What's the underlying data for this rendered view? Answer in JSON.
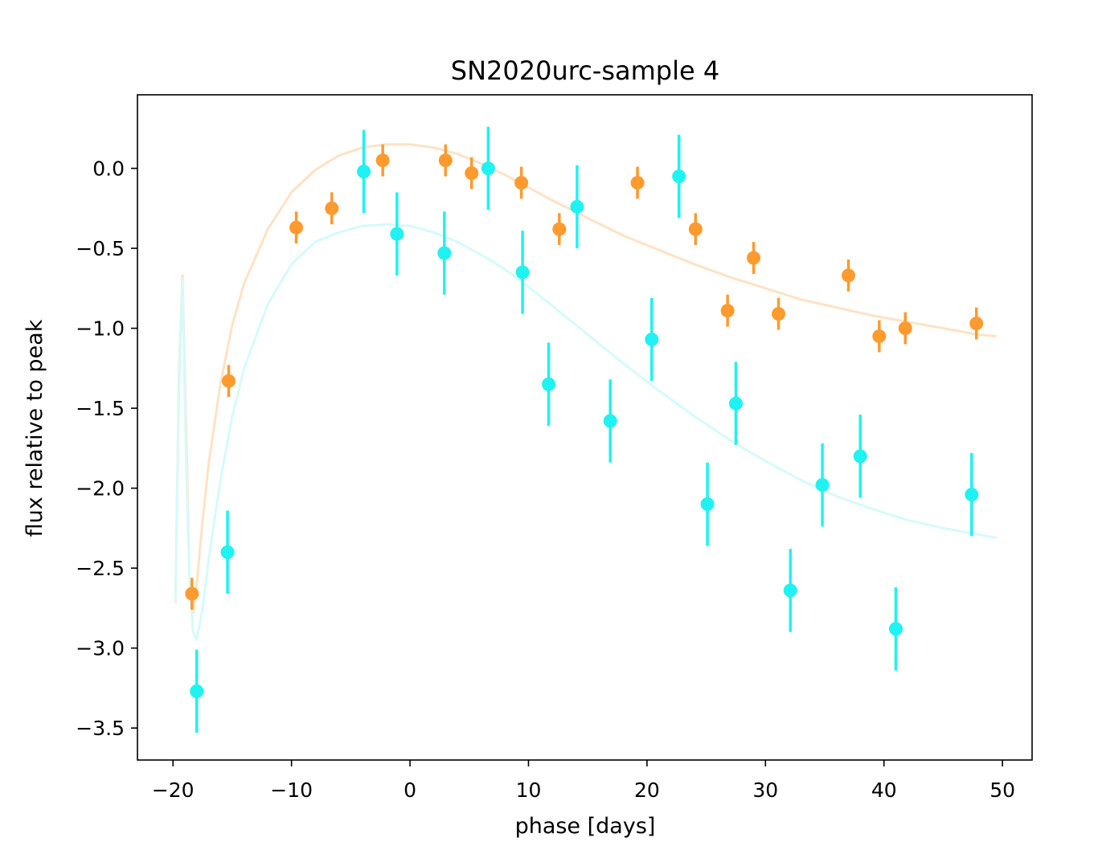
{
  "chart_data": {
    "type": "scatter",
    "title": "SN2020urc-sample 4",
    "xlabel": "phase [days]",
    "ylabel": "flux relative to peak",
    "xlim": [
      -23,
      52.5
    ],
    "ylim": [
      -3.7,
      0.46
    ],
    "xticks": [
      -20,
      -10,
      0,
      10,
      20,
      30,
      40,
      50
    ],
    "xtick_labels": [
      "−20",
      "−10",
      "0",
      "10",
      "20",
      "30",
      "40",
      "50"
    ],
    "yticks": [
      0.0,
      -0.5,
      -1.0,
      -1.5,
      -2.0,
      -2.5,
      -3.0,
      -3.5
    ],
    "ytick_labels": [
      "0.0",
      "−0.5",
      "−1.0",
      "−1.5",
      "−2.0",
      "−2.5",
      "−3.0",
      "−3.5"
    ],
    "grid": false,
    "series": [
      {
        "name": "orange",
        "color": "#ff9a2e",
        "x": [
          -18.4,
          -15.3,
          -9.6,
          -6.6,
          -2.3,
          3.0,
          5.2,
          9.4,
          12.6,
          19.2,
          24.1,
          26.8,
          29.0,
          31.1,
          37.0,
          39.6,
          41.8,
          47.8
        ],
        "y": [
          -2.66,
          -1.33,
          -0.37,
          -0.25,
          0.05,
          0.05,
          -0.03,
          -0.09,
          -0.38,
          -0.09,
          -0.38,
          -0.89,
          -0.56,
          -0.91,
          -0.67,
          -1.05,
          -1.0,
          -0.97
        ],
        "err": [
          0.1,
          0.1,
          0.1,
          0.1,
          0.1,
          0.1,
          0.1,
          0.1,
          0.1,
          0.1,
          0.1,
          0.1,
          0.1,
          0.1,
          0.1,
          0.1,
          0.1,
          0.1
        ]
      },
      {
        "name": "cyan",
        "color": "#1ff2f2",
        "x": [
          -18.0,
          -15.4,
          -3.9,
          -1.1,
          2.9,
          6.6,
          9.5,
          11.7,
          14.1,
          16.9,
          20.4,
          22.7,
          25.1,
          27.5,
          32.1,
          34.8,
          38.0,
          41.0,
          47.4
        ],
        "y": [
          -3.27,
          -2.4,
          -0.02,
          -0.41,
          -0.53,
          0.0,
          -0.65,
          -1.35,
          -0.24,
          -1.58,
          -1.07,
          -0.05,
          -2.1,
          -1.47,
          -2.64,
          -1.98,
          -1.8,
          -2.88,
          -2.04
        ],
        "err": [
          0.26,
          0.26,
          0.26,
          0.26,
          0.26,
          0.26,
          0.26,
          0.26,
          0.26,
          0.26,
          0.26,
          0.26,
          0.26,
          0.26,
          0.26,
          0.26,
          0.26,
          0.26,
          0.26
        ]
      }
    ],
    "model_curves": [
      {
        "name": "orange-model",
        "color": "#ffe2c4",
        "x": [
          -19.8,
          -19.5,
          -19.2,
          -18.9,
          -18.6,
          -18.3,
          -18.0,
          -17.5,
          -17.0,
          -16.0,
          -15.0,
          -14.0,
          -12.0,
          -10.0,
          -8.0,
          -6.0,
          -4.0,
          -2.0,
          0.0,
          2.0,
          4.0,
          6.0,
          8.0,
          10.0,
          12.0,
          15.0,
          18.0,
          21.0,
          24.0,
          27.0,
          30.0,
          33.0,
          36.0,
          39.0,
          42.0,
          45.0,
          48.0,
          49.5
        ],
        "y": [
          -2.72,
          -1.3,
          -0.67,
          -1.6,
          -2.6,
          -2.78,
          -2.6,
          -2.2,
          -1.85,
          -1.35,
          -0.98,
          -0.72,
          -0.38,
          -0.15,
          -0.01,
          0.08,
          0.13,
          0.15,
          0.15,
          0.13,
          0.09,
          0.03,
          -0.04,
          -0.12,
          -0.2,
          -0.31,
          -0.42,
          -0.51,
          -0.6,
          -0.68,
          -0.75,
          -0.82,
          -0.87,
          -0.92,
          -0.96,
          -1.0,
          -1.04,
          -1.05
        ]
      },
      {
        "name": "cyan-model",
        "color": "#d6fafa",
        "x": [
          -19.8,
          -19.5,
          -19.2,
          -18.9,
          -18.6,
          -18.3,
          -18.0,
          -17.5,
          -17.0,
          -16.0,
          -15.0,
          -14.0,
          -12.0,
          -10.0,
          -8.0,
          -6.0,
          -4.0,
          -2.0,
          0.0,
          2.0,
          4.0,
          6.0,
          8.0,
          10.0,
          12.0,
          15.0,
          18.0,
          21.0,
          24.0,
          27.0,
          30.0,
          33.0,
          36.0,
          39.0,
          42.0,
          45.0,
          48.0,
          49.5
        ],
        "y": [
          -2.72,
          -1.4,
          -0.7,
          -1.8,
          -2.6,
          -2.9,
          -2.95,
          -2.75,
          -2.45,
          -1.95,
          -1.55,
          -1.25,
          -0.85,
          -0.6,
          -0.46,
          -0.4,
          -0.36,
          -0.35,
          -0.36,
          -0.4,
          -0.46,
          -0.54,
          -0.63,
          -0.74,
          -0.86,
          -1.04,
          -1.22,
          -1.39,
          -1.55,
          -1.7,
          -1.83,
          -1.95,
          -2.05,
          -2.13,
          -2.2,
          -2.25,
          -2.29,
          -2.31
        ]
      }
    ]
  }
}
